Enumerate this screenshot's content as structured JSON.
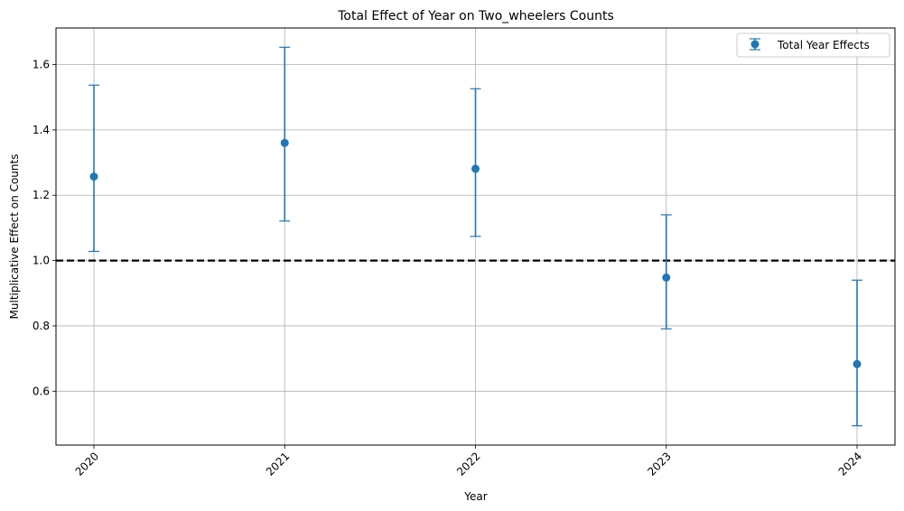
{
  "chart_data": {
    "type": "errorbar",
    "title": "Total Effect of Year on Two_wheelers Counts",
    "xlabel": "Year",
    "ylabel": "Multiplicative Effect on Counts",
    "categories": [
      "2020",
      "2021",
      "2022",
      "2023",
      "2024"
    ],
    "series": [
      {
        "name": "Total Year Effects",
        "color": "#1f77b4",
        "values": [
          1.257,
          1.36,
          1.281,
          0.948,
          0.683
        ],
        "lower": [
          1.028,
          1.121,
          1.074,
          0.791,
          0.494
        ],
        "upper": [
          1.537,
          1.653,
          1.526,
          1.14,
          0.94
        ]
      }
    ],
    "reference_line": {
      "y": 1.0,
      "style": "dashed",
      "color": "#000000"
    },
    "ylim": [
      0.435,
      1.712
    ],
    "yticks": [
      0.6,
      0.8,
      1.0,
      1.2,
      1.4,
      1.6
    ],
    "ytick_labels": [
      "0.6",
      "0.8",
      "1.0",
      "1.2",
      "1.4",
      "1.6"
    ],
    "xtick_rotation": 45,
    "grid": true,
    "legend_position": "top-right"
  }
}
